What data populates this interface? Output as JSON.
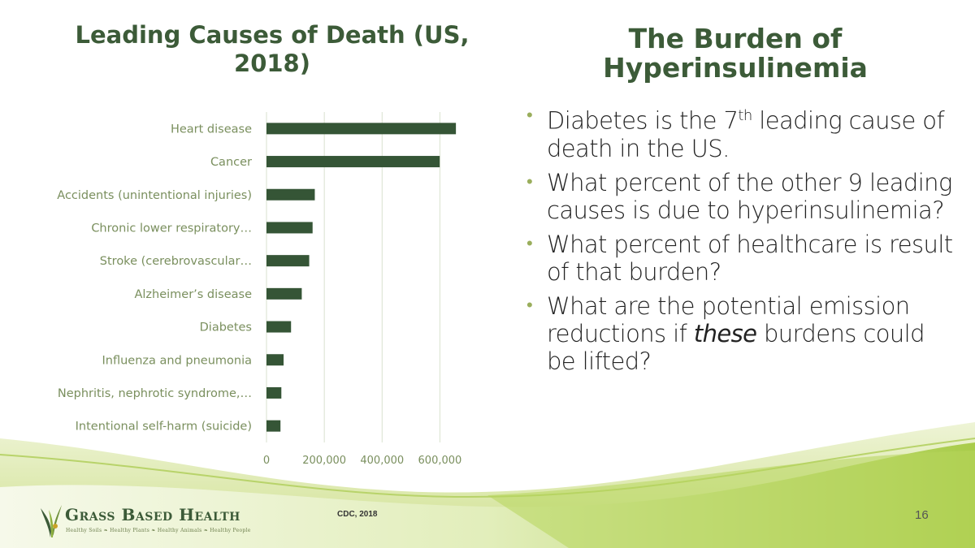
{
  "slide": {
    "title": "The Burden of Hyperinsulinemia",
    "bullets": [
      {
        "pre": "Diabetes is the 7",
        "sup": "th",
        "post": " leading cause of death in the US.",
        "em": "",
        "after": ""
      },
      {
        "pre": "What percent of the other 9 leading causes is due to hyperinsulinemia?",
        "sup": "",
        "post": "",
        "em": "",
        "after": ""
      },
      {
        "pre": "What percent of healthcare is result of that burden?",
        "sup": "",
        "post": "",
        "em": "",
        "after": ""
      },
      {
        "pre": "What are the potential emission reductions if ",
        "sup": "",
        "post": "",
        "em": "these",
        "after": " burdens could be lifted?"
      }
    ],
    "source": "CDC, 2018",
    "page_number": "16"
  },
  "logo": {
    "name": "Grass Based Health",
    "tagline": "Healthy Soils  ❧  Healthy Plants  ❧  Healthy Animals  ❧  Healthy People"
  },
  "colors": {
    "bar": "#355536",
    "title": "#3c5b38",
    "accent_green": "#a4c639"
  },
  "chart_data": {
    "type": "bar",
    "orientation": "horizontal",
    "title": "Leading Causes of Death (US, 2018)",
    "xlabel": "",
    "ylabel": "",
    "categories": [
      "Heart disease",
      "Cancer",
      "Accidents (unintentional injuries)",
      "Chronic lower respiratory…",
      "Stroke (cerebrovascular…",
      "Alzheimer’s disease",
      "Diabetes",
      "Influenza and pneumonia",
      "Nephritis, nephrotic syndrome,…",
      "Intentional self-harm (suicide)"
    ],
    "values": [
      655381,
      599274,
      167127,
      159486,
      147810,
      122019,
      84946,
      59120,
      51386,
      48344
    ],
    "xlim": [
      0,
      700000
    ],
    "xticks": [
      0,
      200000,
      400000,
      600000
    ],
    "xtick_labels": [
      "0",
      "200,000",
      "400,000",
      "600,000"
    ],
    "grid": "vertical",
    "legend": "none"
  }
}
